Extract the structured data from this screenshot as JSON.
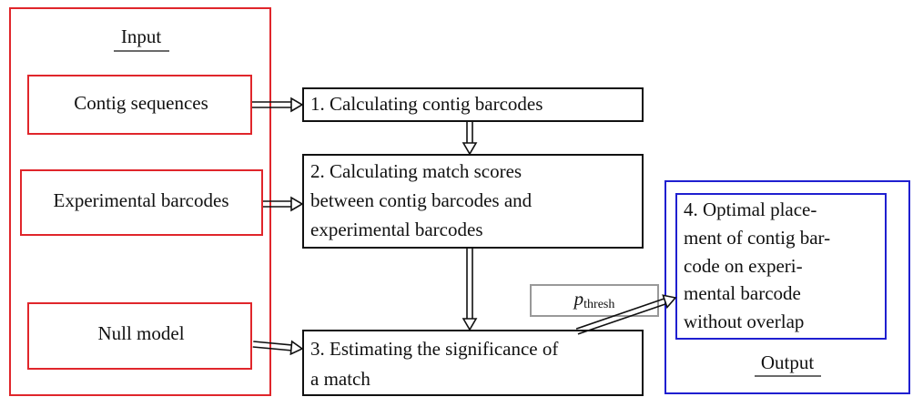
{
  "input": {
    "title": "Input",
    "items": [
      "Contig sequences",
      "Experimental barcodes",
      "Null model"
    ]
  },
  "steps": [
    {
      "lines": [
        "1.  Calculating contig barcodes"
      ]
    },
    {
      "lines": [
        "2.  Calculating match scores",
        "between contig barcodes and",
        "experimental barcodes"
      ]
    },
    {
      "lines": [
        "3.  Estimating the significance of",
        "a match"
      ]
    },
    {
      "lines": [
        "4.  Optimal place-",
        "ment of contig bar-",
        "code on experi-",
        "mental barcode",
        "without overlap"
      ]
    }
  ],
  "threshold": {
    "base": "p",
    "subscript": "thresh"
  },
  "output": {
    "title": "Output"
  }
}
